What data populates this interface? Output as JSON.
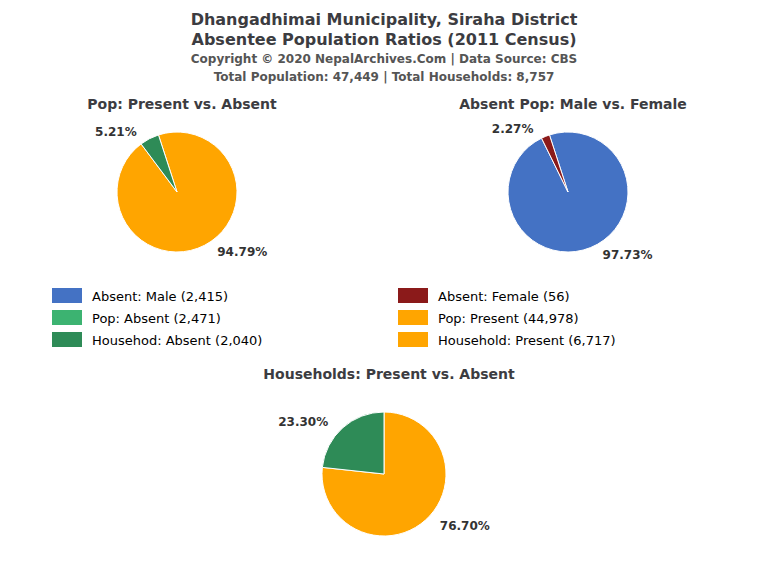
{
  "title": "Dhangadhimai Municipality, Siraha District",
  "subtitle": "Absentee Population Ratios (2011 Census)",
  "annotations": [
    "Copyright © 2020 NepalArchives.Com | Data Source: CBS",
    "Total Population: 47,449 | Total Households: 8,757"
  ],
  "legend_items": [
    {
      "label": "Absent: Male (2,415)",
      "color": "#4472C4"
    },
    {
      "label": "Absent: Female (56)",
      "color": "#8B1A1A"
    },
    {
      "label": "Pop: Absent (2,471)",
      "color": "#3CB371"
    },
    {
      "label": "Pop: Present (44,978)",
      "color": "#FFA500"
    },
    {
      "label": "Househod: Absent (2,040)",
      "color": "#2E8B57"
    },
    {
      "label": "Household: Present (6,717)",
      "color": "#FFA500"
    }
  ],
  "chart_data": [
    {
      "type": "pie",
      "title": "Pop: Present vs. Absent",
      "values": [
        94.79,
        5.21
      ],
      "value_labels": [
        "94.79%",
        "5.21%"
      ],
      "colors": [
        "#FFA500",
        "#2E8B57"
      ],
      "data_labels": true
    },
    {
      "type": "pie",
      "title": "Absent Pop: Male vs. Female",
      "values": [
        97.73,
        2.27
      ],
      "value_labels": [
        "97.73%",
        "2.27%"
      ],
      "colors": [
        "#4472C4",
        "#8B1A1A"
      ],
      "data_labels": true
    },
    {
      "type": "pie",
      "title": "Households: Present vs. Absent",
      "values": [
        76.7,
        23.3
      ],
      "value_labels": [
        "76.70%",
        "23.30%"
      ],
      "colors": [
        "#FFA500",
        "#2E8B57"
      ],
      "data_labels": true
    }
  ]
}
